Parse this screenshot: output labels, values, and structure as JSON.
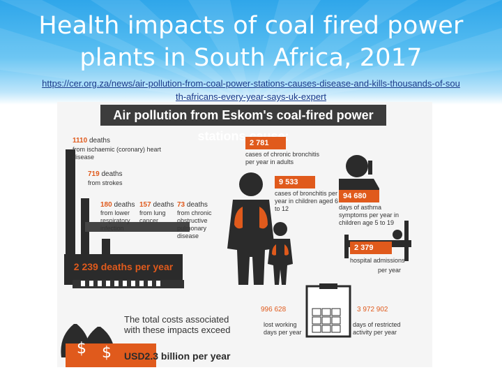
{
  "slide": {
    "title": "Health impacts of coal fired power plants in South Africa, 2017",
    "source_link": "https://cer.org.za/news/air-pollution-from-coal-power-stations-causes-disease-and-kills-thousands-of-south-africans-every-year-says-uk-expert"
  },
  "infographic": {
    "header": "Air pollution from Eskom's coal-fired power stations cause:",
    "deaths": [
      {
        "value": "1110",
        "unit": "deaths",
        "desc": "from ischaemic (coronary) heart disease"
      },
      {
        "value": "719",
        "unit": "deaths",
        "desc": "from strokes"
      },
      {
        "value": "180",
        "unit": "deaths",
        "desc": "from lower respiratory infection"
      },
      {
        "value": "157",
        "unit": "deaths",
        "desc": "from lung cancer"
      },
      {
        "value": "73",
        "unit": "deaths",
        "desc": "from chronic obstructive pulmonary disease"
      }
    ],
    "total_deaths": "2 239 deaths per year",
    "adult_bronchitis": {
      "value": "2 781",
      "desc": "cases of chronic bronchitis per year in adults"
    },
    "child_bronchitis": {
      "value": "9 533",
      "desc": "cases of bronchitis per year in children aged 6 to 12"
    },
    "asthma": {
      "value": "94 680",
      "desc": "days of asthma symptoms per year in children age 5 to 19"
    },
    "hospital": {
      "value": "2 379",
      "desc": "hospital admissions",
      "suffix": "per year"
    },
    "working_days": {
      "value": "996 628",
      "desc": "lost working days per year"
    },
    "restricted_days": {
      "value": "3 972 902",
      "desc": "days of restricted activity per year"
    },
    "cost_text": "The total costs associated with these impacts exceed",
    "cost_value": "USD2.3 billion per year",
    "colors": {
      "accent": "#e05a1c",
      "dark": "#2b2b2b",
      "banner": "#3aaaf0"
    },
    "icons": [
      "factory-icon",
      "man-icon",
      "child-icon",
      "lungs-icon",
      "phone-person-icon",
      "hospital-bed-icon",
      "clipboard-icon",
      "money-bag-icon"
    ]
  }
}
